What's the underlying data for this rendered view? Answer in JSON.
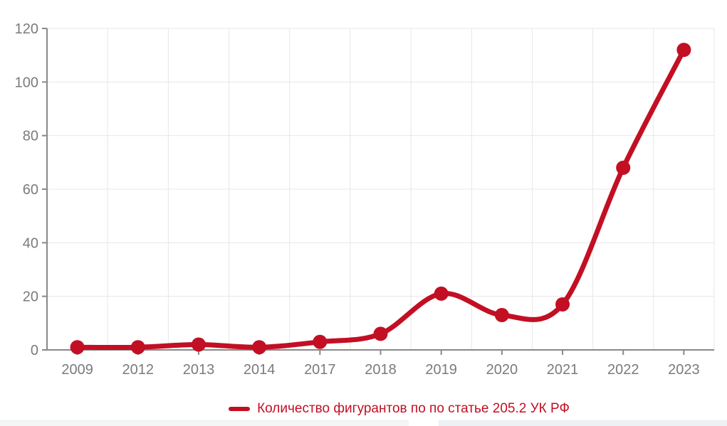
{
  "chart_data": {
    "type": "line",
    "categories": [
      "2009",
      "2012",
      "2013",
      "2014",
      "2017",
      "2018",
      "2019",
      "2020",
      "2021",
      "2022",
      "2023"
    ],
    "series": [
      {
        "name": "Количество фигурантов по по статье 205.2 УК РФ",
        "values": [
          1,
          1,
          2,
          1,
          3,
          6,
          21,
          13,
          17,
          68,
          112
        ]
      }
    ],
    "title": "",
    "xlabel": "",
    "ylabel": "",
    "ylim": [
      0,
      120
    ],
    "yticks": [
      0,
      20,
      40,
      60,
      80,
      100,
      120
    ],
    "grid": true,
    "smooth": true,
    "legend_position": "bottom"
  },
  "colors": {
    "series_red": "#c20f23",
    "axis_line": "#888888",
    "grid_line": "#e7e7e7",
    "tick_label": "#7b7b7b",
    "background": "#ffffff"
  }
}
